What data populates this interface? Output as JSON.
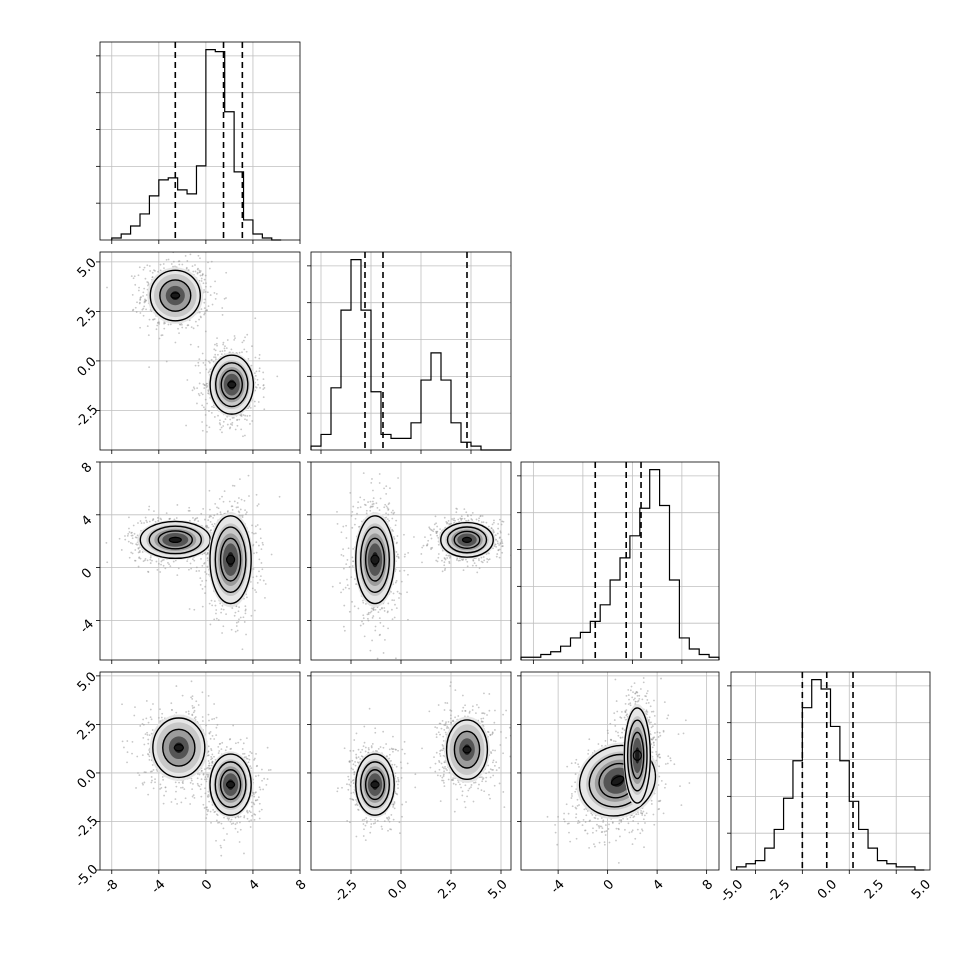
{
  "chart_data": {
    "type": "corner",
    "grid": true,
    "panels": [
      {
        "id": "hist-x0",
        "type": "histogram",
        "xlim": [
          -9,
          8
        ],
        "bins": {
          "start": -8.0,
          "width": 0.8,
          "counts": [
            1,
            3,
            7,
            13,
            22,
            30,
            31,
            25,
            23,
            37,
            95,
            94,
            64,
            34,
            10,
            3,
            1,
            0
          ]
        },
        "quantiles": [
          -2.6,
          1.5,
          3.1
        ],
        "tick_labels_y": false
      },
      {
        "id": "scatter-x0-x1",
        "type": "density2d",
        "xlim": [
          -9,
          8
        ],
        "ylim": [
          -4.5,
          5.5
        ],
        "ytick_labels": [
          "5.0",
          "2.5",
          "0.0",
          "-2.5"
        ],
        "yticks": [
          5.0,
          2.5,
          0.0,
          -2.5
        ],
        "clusters": [
          {
            "x": -2.6,
            "y": 3.3,
            "sx": 1.25,
            "sy": 0.75,
            "levels": 2
          },
          {
            "x": 2.2,
            "y": -1.2,
            "sx": 1.05,
            "sy": 0.85,
            "levels": 3
          }
        ]
      },
      {
        "id": "hist-x1",
        "type": "histogram",
        "xlim": [
          -4.5,
          5.5
        ],
        "bins": {
          "start": -4.5,
          "width": 0.5,
          "counts": [
            1,
            4,
            16,
            36,
            49,
            36,
            15,
            4,
            3,
            3,
            7,
            18,
            25,
            18,
            7,
            2,
            1,
            0,
            0,
            0
          ]
        },
        "quantiles": [
          -1.8,
          -0.9,
          3.3
        ]
      },
      {
        "id": "scatter-x0-x2",
        "type": "density2d",
        "xlim": [
          -9,
          8
        ],
        "ylim": [
          -7,
          8
        ],
        "ytick_labels": [
          "8",
          "4",
          "0",
          "-4"
        ],
        "yticks": [
          8,
          4,
          0,
          -4
        ],
        "clusters": [
          {
            "x": -2.6,
            "y": 2.1,
            "sx": 1.7,
            "sy": 0.8,
            "levels": 3
          },
          {
            "x": 2.1,
            "y": 0.6,
            "sx": 1.0,
            "sy": 1.9,
            "levels": 3
          }
        ]
      },
      {
        "id": "scatter-x1-x2",
        "type": "density2d",
        "xlim": [
          -4.5,
          5.5
        ],
        "ylim": [
          -7,
          8
        ],
        "clusters": [
          {
            "x": -1.3,
            "y": 0.6,
            "sx": 0.55,
            "sy": 1.9,
            "levels": 3
          },
          {
            "x": 3.3,
            "y": 2.1,
            "sx": 0.75,
            "sy": 0.75,
            "levels": 3
          }
        ]
      },
      {
        "id": "hist-x2",
        "type": "histogram",
        "xlim": [
          -7,
          9
        ],
        "bins": {
          "start": -7.0,
          "width": 0.8,
          "counts": [
            1,
            1,
            2,
            3,
            5,
            8,
            10,
            14,
            20,
            29,
            37,
            45,
            55,
            69,
            56,
            29,
            8,
            4,
            2,
            1
          ]
        },
        "quantiles": [
          -1.0,
          1.5,
          2.7
        ]
      },
      {
        "id": "scatter-x0-x3",
        "type": "density2d",
        "xlim": [
          -9,
          8
        ],
        "ylim": [
          -5,
          5.2
        ],
        "ytick_labels": [
          "5.0",
          "2.5",
          "0.0",
          "-2.5",
          "-5.0"
        ],
        "yticks": [
          5.0,
          2.5,
          0.0,
          -2.5,
          -5.0
        ],
        "xtick_labels": [
          "-8",
          "-4",
          "0",
          "4",
          "8"
        ],
        "xticks": [
          -8,
          -4,
          0,
          4,
          8
        ],
        "clusters": [
          {
            "x": -2.3,
            "y": 1.3,
            "sx": 1.3,
            "sy": 0.9,
            "levels": 2
          },
          {
            "x": 2.1,
            "y": -0.6,
            "sx": 1.0,
            "sy": 0.9,
            "levels": 3
          }
        ]
      },
      {
        "id": "scatter-x1-x3",
        "type": "density2d",
        "xlim": [
          -4.5,
          5.5
        ],
        "ylim": [
          -5,
          5.2
        ],
        "xtick_labels": [
          "-2.5",
          "0.0",
          "2.5",
          "5.0"
        ],
        "xticks": [
          -2.5,
          0.0,
          2.5,
          5.0
        ],
        "clusters": [
          {
            "x": -1.3,
            "y": -0.6,
            "sx": 0.55,
            "sy": 0.9,
            "levels": 3
          },
          {
            "x": 3.3,
            "y": 1.2,
            "sx": 0.6,
            "sy": 0.9,
            "levels": 2
          }
        ]
      },
      {
        "id": "scatter-x2-x3",
        "type": "density2d",
        "xlim": [
          -7,
          9
        ],
        "ylim": [
          -5,
          5.2
        ],
        "xtick_labels": [
          "-4",
          "0",
          "4",
          "8"
        ],
        "xticks": [
          -4,
          0,
          4,
          8
        ],
        "clusters": [
          {
            "x": 0.8,
            "y": -0.4,
            "sx": 1.8,
            "sy": 1.0,
            "levels": 3,
            "rot": 0.5
          },
          {
            "x": 2.4,
            "y": 0.9,
            "sx": 0.6,
            "sy": 1.4,
            "levels": 3
          }
        ]
      },
      {
        "id": "hist-x3",
        "type": "histogram",
        "xlim": [
          -5.3,
          5.3
        ],
        "xtick_labels": [
          "-5.0",
          "-2.5",
          "0.0",
          "2.5",
          "5.0"
        ],
        "xticks": [
          -5.0,
          -2.5,
          0.0,
          2.5,
          5.0
        ],
        "bins": {
          "start": -5.0,
          "width": 0.5,
          "counts": [
            1,
            2,
            3,
            7,
            13,
            23,
            35,
            52,
            61,
            58,
            46,
            35,
            22,
            13,
            7,
            3,
            2,
            1,
            1,
            0
          ]
        },
        "quantiles": [
          -1.5,
          -0.2,
          1.2
        ]
      }
    ]
  }
}
